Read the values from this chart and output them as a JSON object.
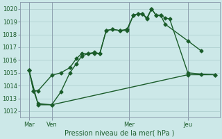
{
  "background_color": "#cce8e8",
  "plot_bg_color": "#cce8e8",
  "grid_color": "#aacccc",
  "line_color": "#1a5c2a",
  "title": "Pression niveau de la mer( hPa )",
  "ylim": [
    1011.5,
    1020.5
  ],
  "yticks": [
    1012,
    1013,
    1014,
    1015,
    1016,
    1017,
    1018,
    1019,
    1020
  ],
  "xlim": [
    0,
    220
  ],
  "xtick_positions": [
    10,
    35,
    120,
    185
  ],
  "xtick_labels": [
    "Mar",
    "Ven",
    "Mer",
    "Jeu"
  ],
  "vline_positions": [
    10,
    35,
    120,
    185
  ],
  "line1_x": [
    10,
    15,
    20,
    35,
    45,
    55,
    62,
    68,
    75,
    82,
    88,
    95,
    102,
    110,
    118,
    125,
    130,
    135,
    140,
    145,
    150,
    155,
    160,
    165,
    185,
    200,
    215
  ],
  "line1_y": [
    1015.2,
    1013.6,
    1013.6,
    1014.8,
    1015.0,
    1015.4,
    1016.1,
    1016.5,
    1016.5,
    1016.6,
    1016.5,
    1018.3,
    1018.4,
    1018.3,
    1018.4,
    1019.5,
    1019.6,
    1019.6,
    1019.2,
    1020.0,
    1019.5,
    1019.5,
    1019.3,
    1019.2,
    1015.0,
    1014.9,
    1014.85
  ],
  "line2_x": [
    10,
    15,
    20,
    35,
    45,
    55,
    62,
    68,
    75,
    82,
    88,
    95,
    102,
    110,
    118,
    125,
    130,
    135,
    140,
    145,
    150,
    155,
    160,
    185,
    200
  ],
  "line2_y": [
    1015.2,
    1013.6,
    1012.6,
    1012.5,
    1013.5,
    1015.0,
    1015.7,
    1016.3,
    1016.5,
    1016.5,
    1016.5,
    1018.3,
    1018.4,
    1018.3,
    1018.3,
    1019.5,
    1019.6,
    1019.6,
    1019.3,
    1020.0,
    1019.5,
    1019.5,
    1018.8,
    1017.5,
    1016.7
  ],
  "line3_x": [
    10,
    20,
    35,
    185,
    215
  ],
  "line3_y": [
    1015.2,
    1012.5,
    1012.5,
    1014.85,
    1014.85
  ],
  "marker_style": "D",
  "marker_size": 2.5,
  "line_width": 1.0,
  "tick_fontsize": 6,
  "label_fontsize": 7
}
